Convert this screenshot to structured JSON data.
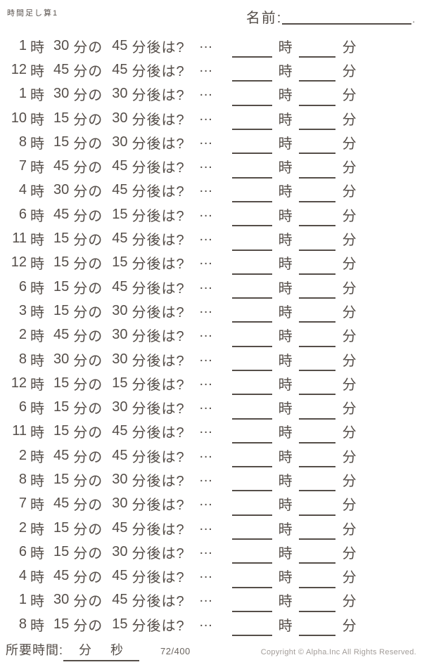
{
  "page": {
    "title": "時間足し算1",
    "name_label": "名前:",
    "name_value": "",
    "name_suffix": "."
  },
  "labels": {
    "hour_unit": "時",
    "minute_of": "分の",
    "after_suffix": "分後は?",
    "ellipsis": "…",
    "answer_hour_unit": "時",
    "answer_minute_unit": "分"
  },
  "problems": [
    {
      "hour": "1",
      "minute": "30",
      "delta": "45"
    },
    {
      "hour": "12",
      "minute": "45",
      "delta": "45"
    },
    {
      "hour": "1",
      "minute": "30",
      "delta": "30"
    },
    {
      "hour": "10",
      "minute": "15",
      "delta": "30"
    },
    {
      "hour": "8",
      "minute": "15",
      "delta": "30"
    },
    {
      "hour": "7",
      "minute": "45",
      "delta": "45"
    },
    {
      "hour": "4",
      "minute": "30",
      "delta": "45"
    },
    {
      "hour": "6",
      "minute": "45",
      "delta": "15"
    },
    {
      "hour": "11",
      "minute": "15",
      "delta": "45"
    },
    {
      "hour": "12",
      "minute": "15",
      "delta": "15"
    },
    {
      "hour": "6",
      "minute": "15",
      "delta": "45"
    },
    {
      "hour": "3",
      "minute": "15",
      "delta": "30"
    },
    {
      "hour": "2",
      "minute": "45",
      "delta": "30"
    },
    {
      "hour": "8",
      "minute": "30",
      "delta": "30"
    },
    {
      "hour": "12",
      "minute": "15",
      "delta": "15"
    },
    {
      "hour": "6",
      "minute": "15",
      "delta": "30"
    },
    {
      "hour": "11",
      "minute": "15",
      "delta": "45"
    },
    {
      "hour": "2",
      "minute": "45",
      "delta": "45"
    },
    {
      "hour": "8",
      "minute": "15",
      "delta": "30"
    },
    {
      "hour": "7",
      "minute": "45",
      "delta": "30"
    },
    {
      "hour": "2",
      "minute": "15",
      "delta": "45"
    },
    {
      "hour": "6",
      "minute": "15",
      "delta": "30"
    },
    {
      "hour": "4",
      "minute": "45",
      "delta": "45"
    },
    {
      "hour": "1",
      "minute": "30",
      "delta": "45"
    },
    {
      "hour": "8",
      "minute": "15",
      "delta": "15"
    }
  ],
  "footer": {
    "time_label": "所要時間:",
    "minute_label": "分",
    "second_label": "秒",
    "page_number": "72/400",
    "copyright": "Copyright ©  Alpha.Inc All Rights Reserved."
  }
}
